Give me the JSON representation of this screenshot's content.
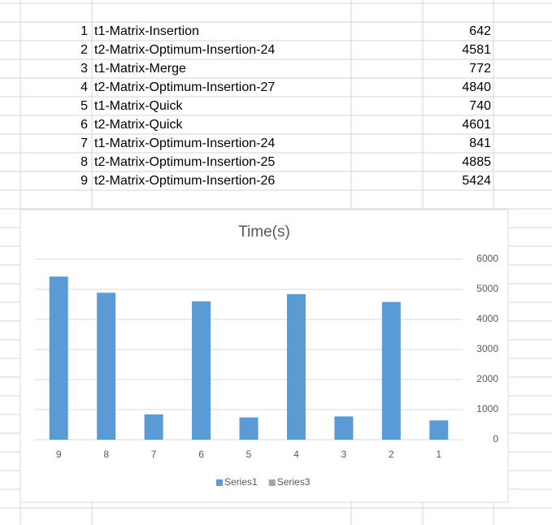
{
  "table": {
    "rows": [
      [
        "1",
        "t1-Matrix-Insertion",
        "642"
      ],
      [
        "2",
        "t2-Matrix-Optimum-Insertion-24",
        "4581"
      ],
      [
        "3",
        "t1-Matrix-Merge",
        "772"
      ],
      [
        "4",
        "t2-Matrix-Optimum-Insertion-27",
        "4840"
      ],
      [
        "5",
        "t1-Matrix-Quick",
        "740"
      ],
      [
        "6",
        "t2-Matrix-Quick",
        "4601"
      ],
      [
        "7",
        "t1-Matrix-Optimum-Insertion-24",
        "841"
      ],
      [
        "8",
        "t2-Matrix-Optimum-Insertion-25",
        "4885"
      ],
      [
        "9",
        "t2-Matrix-Optimum-Insertion-26",
        "5424"
      ]
    ]
  },
  "chart_data": {
    "type": "bar",
    "title": "Time(s)",
    "categories": [
      "9",
      "8",
      "7",
      "6",
      "5",
      "4",
      "3",
      "2",
      "1"
    ],
    "series": [
      {
        "name": "Series1",
        "color": "#5b9bd5",
        "values": [
          5424,
          4885,
          841,
          4601,
          740,
          4840,
          772,
          4581,
          642
        ]
      },
      {
        "name": "Series3",
        "color": "#a5a5a5",
        "values": [
          null,
          null,
          null,
          null,
          null,
          null,
          null,
          null,
          null
        ]
      }
    ],
    "ylim": [
      0,
      6000
    ],
    "yticks": [
      0,
      1000,
      2000,
      3000,
      4000,
      5000,
      6000
    ],
    "grid": true,
    "legend": "bottom"
  }
}
